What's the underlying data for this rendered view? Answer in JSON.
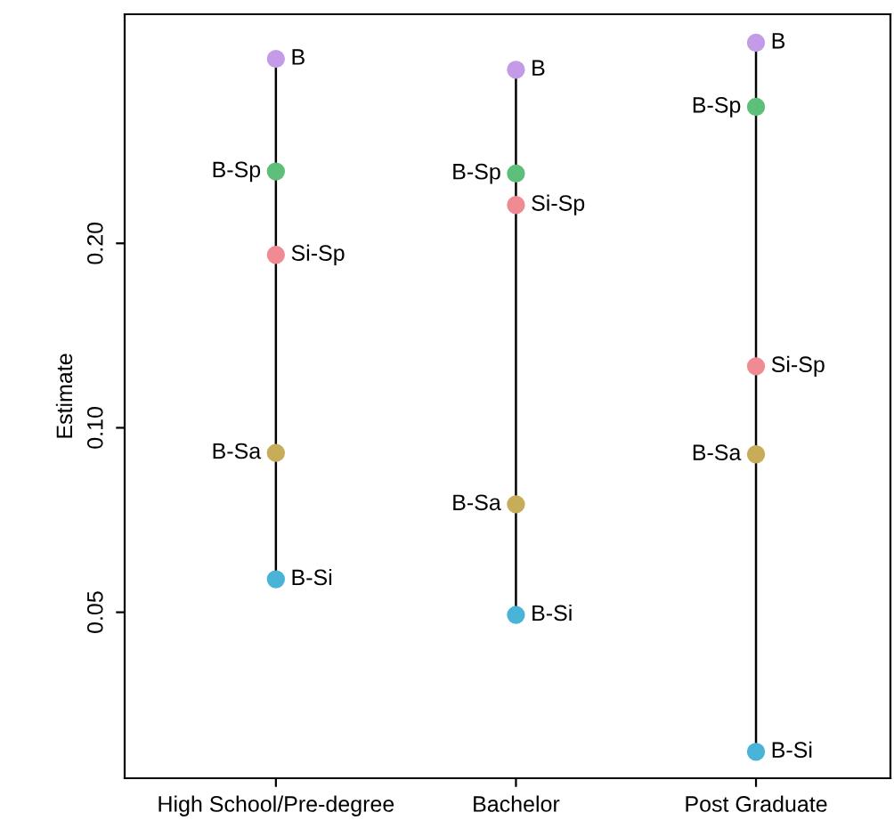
{
  "chart_data": {
    "type": "scatter",
    "ylabel": "Estimate",
    "categories": [
      "High School/Pre-degree",
      "Bachelor",
      "Post Graduate"
    ],
    "log": "y",
    "ylim": [
      0.0268,
      0.473
    ],
    "yticks": [
      0.05,
      {
        "value": 0.1,
        "label": "0.10"
      },
      {
        "value": 0.2,
        "label": "0.20"
      }
    ],
    "legend": false,
    "marker": "circle",
    "series": [
      {
        "name": "B",
        "color": "#c49be6",
        "values": [
          0.4,
          0.384,
          0.425
        ]
      },
      {
        "name": "B-Sp",
        "color": "#5dbf7a",
        "values": [
          0.262,
          0.26,
          0.334
        ]
      },
      {
        "name": "Si-Sp",
        "color": "#f08a93",
        "values": [
          0.1915,
          0.231,
          0.126
        ]
      },
      {
        "name": "B-Sa",
        "color": "#c7ad5a",
        "values": [
          0.091,
          0.075,
          0.0905
        ]
      },
      {
        "name": "B-Si",
        "color": "#4ab4d8",
        "values": [
          0.0566,
          0.0495,
          0.0296
        ]
      }
    ]
  }
}
